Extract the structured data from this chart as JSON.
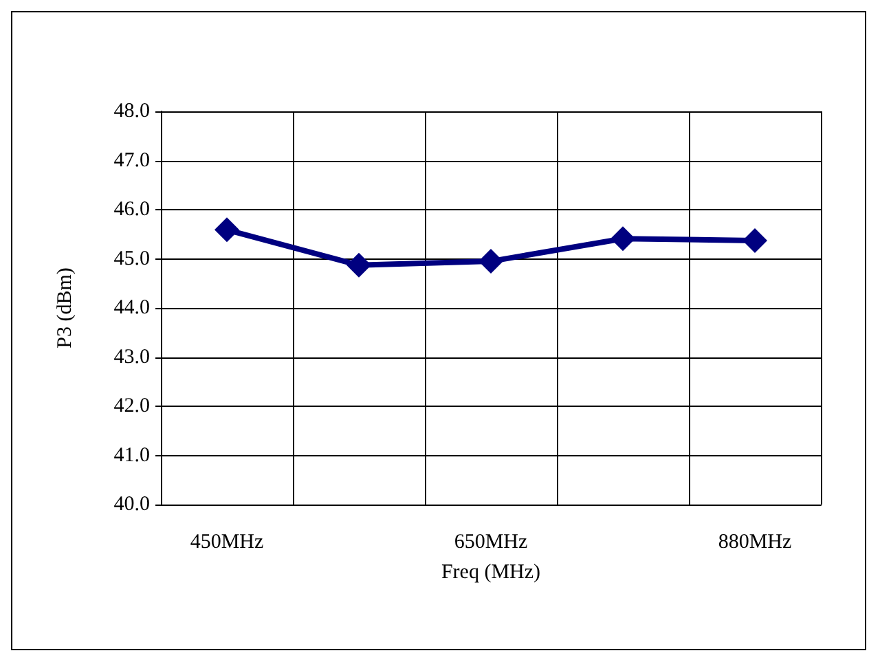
{
  "chart_data": {
    "type": "line",
    "xlabel": "Freq (MHz)",
    "ylabel": "P3 (dBm)",
    "categories": [
      "450MHz",
      null,
      "650MHz",
      null,
      "880MHz"
    ],
    "series": [
      {
        "color": "#000080",
        "values": [
          45.59,
          44.87,
          44.95,
          45.41,
          45.37
        ]
      }
    ],
    "ylim": [
      40,
      48
    ],
    "yticks": [
      {
        "value": 40,
        "label": "40.0"
      },
      {
        "value": 41,
        "label": "41.0"
      },
      {
        "value": 42,
        "label": "42.0"
      },
      {
        "value": 43,
        "label": "43.0"
      },
      {
        "value": 44,
        "label": "44.0"
      },
      {
        "value": 45,
        "label": "45.0"
      },
      {
        "value": 46,
        "label": "46.0"
      },
      {
        "value": 47,
        "label": "47.0"
      },
      {
        "value": 48,
        "label": "48.0"
      }
    ],
    "grid": true,
    "marker": "diamond",
    "line_style": "solid"
  }
}
